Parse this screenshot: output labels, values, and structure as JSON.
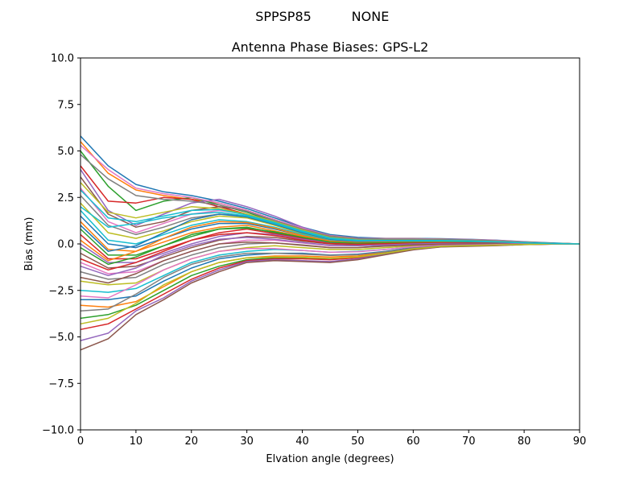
{
  "figure": {
    "suptitle_left": "SPPSP85",
    "suptitle_right": "NONE"
  },
  "chart_data": {
    "type": "line",
    "title": "Antenna Phase Biases: GPS-L2",
    "xlabel": "Elvation angle (degrees)",
    "ylabel": "Bias (mm)",
    "xlim": [
      0,
      90
    ],
    "ylim": [
      -10,
      10
    ],
    "xticks": [
      0,
      10,
      20,
      30,
      40,
      50,
      60,
      70,
      80,
      90
    ],
    "yticks": [
      -10.0,
      -7.5,
      -5.0,
      -2.5,
      0.0,
      2.5,
      5.0,
      7.5,
      10.0
    ],
    "x": [
      0,
      5,
      10,
      15,
      20,
      25,
      30,
      35,
      40,
      45,
      50,
      55,
      60,
      65,
      70,
      75,
      80,
      85,
      90
    ],
    "grid": false,
    "legend": "none",
    "colors": [
      "#1f77b4",
      "#ff7f0e",
      "#2ca02c",
      "#d62728",
      "#9467bd",
      "#8c564b",
      "#e377c2",
      "#7f7f7f",
      "#bcbd22",
      "#17becf"
    ],
    "series": [
      {
        "values": [
          5.8,
          4.2,
          3.2,
          2.8,
          2.6,
          2.3,
          1.9,
          1.4,
          0.9,
          0.5,
          0.35,
          0.3,
          0.3,
          0.28,
          0.25,
          0.2,
          0.12,
          0.05,
          0.0
        ]
      },
      {
        "values": [
          5.5,
          3.8,
          2.9,
          2.6,
          2.4,
          2.2,
          1.8,
          1.3,
          0.8,
          0.45,
          0.3,
          0.28,
          0.28,
          0.26,
          0.23,
          0.18,
          0.1,
          0.04,
          0.0
        ]
      },
      {
        "values": [
          5.0,
          3.1,
          1.8,
          2.3,
          2.5,
          2.1,
          1.7,
          1.2,
          0.75,
          0.4,
          0.28,
          0.25,
          0.25,
          0.24,
          0.22,
          0.17,
          0.1,
          0.04,
          0.0
        ]
      },
      {
        "values": [
          4.2,
          2.3,
          2.2,
          2.5,
          2.4,
          2.0,
          1.6,
          1.1,
          0.7,
          0.38,
          0.25,
          0.24,
          0.24,
          0.23,
          0.2,
          0.15,
          0.09,
          0.03,
          0.0
        ]
      },
      {
        "values": [
          4.0,
          1.8,
          1.0,
          1.6,
          2.2,
          2.4,
          2.0,
          1.5,
          0.9,
          0.4,
          0.25,
          0.22,
          0.22,
          0.2,
          0.18,
          0.14,
          0.08,
          0.03,
          0.0
        ]
      },
      {
        "values": [
          3.6,
          1.6,
          0.9,
          1.2,
          1.8,
          2.0,
          1.8,
          1.3,
          0.8,
          0.35,
          0.2,
          0.2,
          0.2,
          0.18,
          0.16,
          0.12,
          0.07,
          0.03,
          0.0
        ]
      },
      {
        "values": [
          3.0,
          1.2,
          0.6,
          1.1,
          1.6,
          1.8,
          1.6,
          1.2,
          0.7,
          0.3,
          0.18,
          0.18,
          0.18,
          0.17,
          0.15,
          0.11,
          0.06,
          0.02,
          0.0
        ]
      },
      {
        "values": [
          2.6,
          1.0,
          0.5,
          0.9,
          1.4,
          1.6,
          1.5,
          1.1,
          0.6,
          0.25,
          0.15,
          0.15,
          0.16,
          0.15,
          0.13,
          0.1,
          0.06,
          0.02,
          0.0
        ]
      },
      {
        "values": [
          2.2,
          0.6,
          0.3,
          0.7,
          1.2,
          1.5,
          1.4,
          1.0,
          0.55,
          0.2,
          0.12,
          0.13,
          0.14,
          0.13,
          0.12,
          0.09,
          0.05,
          0.02,
          0.0
        ]
      },
      {
        "values": [
          1.8,
          0.2,
          0.0,
          0.5,
          1.0,
          1.3,
          1.2,
          0.9,
          0.5,
          0.18,
          0.1,
          0.12,
          0.13,
          0.12,
          0.11,
          0.08,
          0.05,
          0.02,
          0.0
        ]
      },
      {
        "values": [
          1.5,
          0.0,
          -0.2,
          0.3,
          0.8,
          1.1,
          1.1,
          0.8,
          0.45,
          0.15,
          0.08,
          0.1,
          0.12,
          0.11,
          0.1,
          0.07,
          0.04,
          0.01,
          0.0
        ]
      },
      {
        "values": [
          1.2,
          -0.3,
          -0.4,
          0.1,
          0.6,
          0.9,
          1.0,
          0.7,
          0.4,
          0.12,
          0.06,
          0.08,
          0.1,
          0.1,
          0.09,
          0.06,
          0.04,
          0.01,
          0.0
        ]
      },
      {
        "values": [
          0.8,
          -0.6,
          -0.6,
          -0.1,
          0.4,
          0.8,
          0.9,
          0.6,
          0.35,
          0.1,
          0.04,
          0.06,
          0.08,
          0.08,
          0.08,
          0.06,
          0.03,
          0.01,
          0.0
        ]
      },
      {
        "values": [
          0.5,
          -0.8,
          -0.8,
          -0.3,
          0.2,
          0.6,
          0.8,
          0.55,
          0.3,
          0.08,
          0.02,
          0.04,
          0.07,
          0.07,
          0.07,
          0.05,
          0.03,
          0.01,
          0.0
        ]
      },
      {
        "values": [
          0.0,
          -1.0,
          -1.0,
          -0.5,
          0.0,
          0.4,
          0.6,
          0.5,
          0.25,
          0.05,
          0.0,
          0.02,
          0.05,
          0.06,
          0.06,
          0.04,
          0.02,
          0.01,
          0.0
        ]
      },
      {
        "values": [
          -0.5,
          -1.3,
          -1.2,
          -0.7,
          -0.2,
          0.2,
          0.4,
          0.35,
          0.15,
          0.0,
          -0.05,
          -0.02,
          0.02,
          0.04,
          0.04,
          0.03,
          0.02,
          0.0,
          0.0
        ]
      },
      {
        "values": [
          -1.0,
          -1.6,
          -1.5,
          -0.9,
          -0.4,
          0.0,
          0.2,
          0.2,
          0.05,
          -0.1,
          -0.1,
          -0.05,
          0.0,
          0.02,
          0.03,
          0.02,
          0.01,
          0.0,
          0.0
        ]
      },
      {
        "values": [
          -1.5,
          -1.9,
          -1.8,
          -1.1,
          -0.6,
          -0.2,
          0.0,
          0.05,
          -0.05,
          -0.2,
          -0.2,
          -0.1,
          -0.05,
          0.0,
          0.01,
          0.01,
          0.0,
          0.0,
          0.0
        ]
      },
      {
        "values": [
          -2.0,
          -2.2,
          -2.1,
          -1.4,
          -0.8,
          -0.4,
          -0.2,
          -0.1,
          -0.2,
          -0.3,
          -0.3,
          -0.2,
          -0.1,
          -0.05,
          -0.02,
          0.0,
          0.0,
          0.0,
          0.0
        ]
      },
      {
        "values": [
          -2.5,
          -2.6,
          -2.4,
          -1.7,
          -1.0,
          -0.6,
          -0.4,
          -0.3,
          -0.35,
          -0.45,
          -0.4,
          -0.3,
          -0.15,
          -0.08,
          -0.05,
          -0.02,
          0.0,
          0.0,
          0.0
        ]
      },
      {
        "values": [
          -3.0,
          -3.0,
          -2.8,
          -2.0,
          -1.3,
          -0.8,
          -0.6,
          -0.5,
          -0.5,
          -0.6,
          -0.55,
          -0.4,
          -0.2,
          -0.1,
          -0.07,
          -0.04,
          -0.02,
          0.0,
          0.0
        ]
      },
      {
        "values": [
          -3.3,
          -3.4,
          -3.1,
          -2.3,
          -1.5,
          -1.0,
          -0.75,
          -0.65,
          -0.65,
          -0.7,
          -0.65,
          -0.45,
          -0.25,
          -0.12,
          -0.09,
          -0.05,
          -0.02,
          0.0,
          0.0
        ]
      },
      {
        "values": [
          -4.0,
          -3.8,
          -3.3,
          -2.5,
          -1.7,
          -1.2,
          -0.85,
          -0.75,
          -0.75,
          -0.8,
          -0.72,
          -0.5,
          -0.28,
          -0.14,
          -0.1,
          -0.06,
          -0.03,
          0.0,
          0.0
        ]
      },
      {
        "values": [
          -4.6,
          -4.3,
          -3.5,
          -2.7,
          -1.9,
          -1.3,
          -0.9,
          -0.8,
          -0.8,
          -0.85,
          -0.75,
          -0.52,
          -0.3,
          -0.15,
          -0.11,
          -0.07,
          -0.03,
          -0.01,
          0.0
        ]
      },
      {
        "values": [
          -5.2,
          -4.8,
          -3.6,
          -2.9,
          -2.0,
          -1.4,
          -0.95,
          -0.85,
          -0.9,
          -0.95,
          -0.8,
          -0.55,
          -0.3,
          -0.15,
          -0.12,
          -0.08,
          -0.04,
          -0.01,
          0.0
        ]
      },
      {
        "values": [
          -5.7,
          -5.1,
          -3.8,
          -3.0,
          -2.1,
          -1.5,
          -1.0,
          -0.9,
          -0.95,
          -1.0,
          -0.85,
          -0.58,
          -0.32,
          -0.16,
          -0.13,
          -0.09,
          -0.04,
          -0.01,
          0.0
        ]
      },
      {
        "values": [
          5.3,
          4.0,
          3.0,
          2.7,
          2.5,
          2.2,
          1.8,
          1.3,
          0.85,
          0.45,
          0.3,
          0.28,
          0.28,
          0.26,
          0.24,
          0.19,
          0.11,
          0.04,
          0.0
        ]
      },
      {
        "values": [
          4.8,
          3.5,
          2.6,
          2.4,
          2.3,
          2.1,
          1.75,
          1.25,
          0.8,
          0.42,
          0.28,
          0.26,
          0.26,
          0.25,
          0.22,
          0.17,
          0.1,
          0.04,
          0.0
        ]
      },
      {
        "values": [
          3.3,
          1.7,
          1.4,
          1.7,
          2.0,
          1.9,
          1.6,
          1.2,
          0.75,
          0.35,
          0.22,
          0.2,
          0.2,
          0.19,
          0.17,
          0.13,
          0.08,
          0.03,
          0.0
        ]
      },
      {
        "values": [
          2.9,
          1.4,
          1.2,
          1.5,
          1.8,
          1.85,
          1.55,
          1.15,
          0.7,
          0.32,
          0.2,
          0.19,
          0.19,
          0.18,
          0.16,
          0.12,
          0.07,
          0.03,
          0.0
        ]
      },
      {
        "values": [
          1.0,
          -0.4,
          -0.1,
          0.6,
          1.3,
          1.6,
          1.45,
          1.05,
          0.6,
          0.25,
          0.14,
          0.14,
          0.15,
          0.14,
          0.13,
          0.1,
          0.06,
          0.02,
          0.0
        ]
      },
      {
        "values": [
          0.2,
          -0.9,
          -0.4,
          0.3,
          0.9,
          1.2,
          1.15,
          0.85,
          0.45,
          0.15,
          0.08,
          0.09,
          0.1,
          0.1,
          0.1,
          0.07,
          0.04,
          0.01,
          0.0
        ]
      },
      {
        "values": [
          -0.2,
          -1.1,
          -0.7,
          -0.1,
          0.5,
          0.8,
          0.85,
          0.65,
          0.35,
          0.1,
          0.04,
          0.06,
          0.08,
          0.08,
          0.08,
          0.05,
          0.03,
          0.01,
          0.0
        ]
      },
      {
        "values": [
          -0.8,
          -1.4,
          -1.0,
          -0.4,
          0.2,
          0.5,
          0.6,
          0.45,
          0.2,
          0.02,
          -0.02,
          0.01,
          0.04,
          0.05,
          0.05,
          0.04,
          0.02,
          0.0,
          0.0
        ]
      },
      {
        "values": [
          -1.2,
          -1.7,
          -1.3,
          -0.6,
          -0.1,
          0.25,
          0.35,
          0.25,
          0.08,
          -0.08,
          -0.1,
          -0.05,
          0.0,
          0.02,
          0.02,
          0.02,
          0.01,
          0.0,
          0.0
        ]
      },
      {
        "values": [
          -1.8,
          -2.1,
          -1.6,
          -0.9,
          -0.4,
          0.0,
          0.1,
          0.05,
          -0.08,
          -0.2,
          -0.2,
          -0.12,
          -0.05,
          -0.02,
          0.0,
          0.0,
          0.0,
          0.0,
          0.0
        ]
      },
      {
        "values": [
          -2.8,
          -2.9,
          -2.2,
          -1.4,
          -0.8,
          -0.4,
          -0.25,
          -0.25,
          -0.35,
          -0.45,
          -0.42,
          -0.3,
          -0.15,
          -0.08,
          -0.05,
          -0.03,
          -0.01,
          0.0,
          0.0
        ]
      },
      {
        "values": [
          -3.6,
          -3.5,
          -2.7,
          -1.8,
          -1.1,
          -0.7,
          -0.5,
          -0.5,
          -0.55,
          -0.62,
          -0.58,
          -0.42,
          -0.22,
          -0.11,
          -0.08,
          -0.05,
          -0.02,
          0.0,
          0.0
        ]
      },
      {
        "values": [
          -4.3,
          -4.0,
          -3.2,
          -2.2,
          -1.5,
          -1.0,
          -0.75,
          -0.7,
          -0.72,
          -0.78,
          -0.7,
          -0.5,
          -0.27,
          -0.13,
          -0.1,
          -0.06,
          -0.03,
          0.0,
          0.0
        ]
      },
      {
        "values": [
          2.0,
          0.9,
          1.1,
          1.4,
          1.6,
          1.7,
          1.5,
          1.1,
          0.65,
          0.28,
          0.17,
          0.17,
          0.17,
          0.16,
          0.14,
          0.11,
          0.06,
          0.02,
          0.0
        ]
      }
    ]
  }
}
